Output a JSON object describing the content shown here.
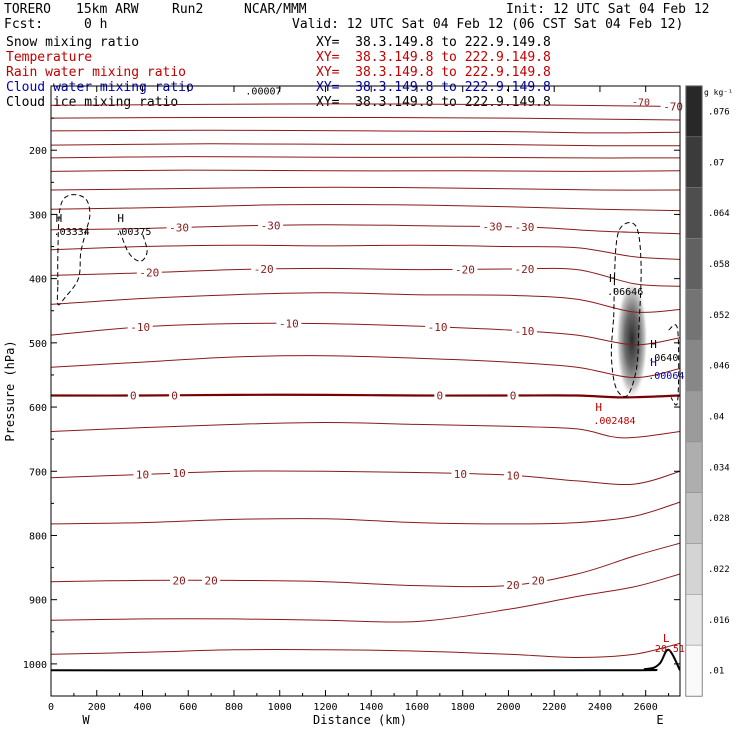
{
  "header": {
    "model": "TORERO",
    "resolution": "15km ARW",
    "run": "Run2",
    "org": "NCAR/MMM",
    "init": "Init: 12 UTC Sat 04 Feb 12",
    "fcst_label": "Fcst:",
    "fcst_value": "0 h",
    "valid": "Valid: 12 UTC Sat 04 Feb 12 (06 CST Sat 04 Feb 12)"
  },
  "fields": [
    {
      "name": "Snow mixing ratio",
      "xy": "XY=  38.3.149.8 to 222.9.149.8",
      "color": "#000000"
    },
    {
      "name": "Temperature",
      "xy": "XY=  38.3.149.8 to 222.9.149.8",
      "color": "#c00000"
    },
    {
      "name": "Rain water mixing ratio",
      "xy": "XY=  38.3.149.8 to 222.9.149.8",
      "color": "#c00000"
    },
    {
      "name": "Cloud water mixing ratio",
      "xy": "XY=  38.3.149.8 to 222.9.149.8",
      "color": "#0000b0"
    },
    {
      "name": "Cloud ice mixing ratio",
      "xy": "XY=  38.3.149.8 to 222.9.149.8",
      "color": "#000000"
    }
  ],
  "colors": {
    "temperature": "#8b1a1a",
    "zero_isotherm": "#7a0000",
    "ground": "#000000",
    "rain_label": "#c00000",
    "cloudwater_label": "#0000b0"
  },
  "chart_data": {
    "type": "contour",
    "xlabel": "Distance (km)",
    "ylabel": "Pressure (hPa)",
    "xlim": [
      0,
      2750
    ],
    "ylim": [
      1050,
      100
    ],
    "x_ticks": [
      0,
      200,
      400,
      600,
      800,
      1000,
      1200,
      1400,
      1600,
      1800,
      2000,
      2200,
      2400,
      2600
    ],
    "y_ticks": [
      200,
      300,
      400,
      500,
      600,
      700,
      800,
      900,
      1000
    ],
    "x_end_labels": {
      "left": "W",
      "right": "E"
    },
    "colorbar": {
      "unit": "g kg⁻¹",
      "ticks": [
        ".01",
        ".016",
        ".022",
        ".028",
        ".034",
        ".04",
        ".046",
        ".052",
        ".058",
        ".064",
        ".07",
        ".076"
      ],
      "values": [
        0.01,
        0.016,
        0.022,
        0.028,
        0.034,
        0.04,
        0.046,
        0.052,
        0.058,
        0.064,
        0.07,
        0.076
      ]
    },
    "temperature_contours": [
      {
        "level": -70,
        "label": "-70",
        "label_x": 2720,
        "points": [
          [
            0,
            130
          ],
          [
            500,
            129
          ],
          [
            1000,
            128
          ],
          [
            1500,
            128
          ],
          [
            2000,
            129
          ],
          [
            2500,
            131
          ],
          [
            2750,
            132
          ]
        ]
      },
      {
        "level": -65,
        "label": "",
        "points": [
          [
            0,
            150
          ],
          [
            700,
            149
          ],
          [
            1400,
            149
          ],
          [
            2000,
            150
          ],
          [
            2500,
            152
          ],
          [
            2750,
            153
          ]
        ]
      },
      {
        "level": -60,
        "label": "",
        "points": [
          [
            0,
            170
          ],
          [
            700,
            169
          ],
          [
            1400,
            170
          ],
          [
            2000,
            171
          ],
          [
            2400,
            173
          ],
          [
            2750,
            172
          ]
        ]
      },
      {
        "level": -55,
        "label": "",
        "points": [
          [
            0,
            192
          ],
          [
            700,
            190
          ],
          [
            1300,
            191
          ],
          [
            1900,
            191
          ],
          [
            2400,
            193
          ],
          [
            2750,
            193
          ]
        ]
      },
      {
        "level": -50,
        "label": "",
        "points": [
          [
            0,
            212
          ],
          [
            600,
            210
          ],
          [
            1200,
            211
          ],
          [
            1800,
            211
          ],
          [
            2300,
            212
          ],
          [
            2750,
            212
          ]
        ]
      },
      {
        "level": -45,
        "label": "",
        "points": [
          [
            0,
            233
          ],
          [
            600,
            231
          ],
          [
            1200,
            232
          ],
          [
            1800,
            232
          ],
          [
            2300,
            233
          ],
          [
            2750,
            232
          ]
        ]
      },
      {
        "level": -40,
        "label": "",
        "points": [
          [
            0,
            262
          ],
          [
            500,
            260
          ],
          [
            1000,
            258
          ],
          [
            1500,
            258
          ],
          [
            2000,
            260
          ],
          [
            2400,
            262
          ],
          [
            2750,
            262
          ]
        ]
      },
      {
        "level": -35,
        "label": "",
        "points": [
          [
            0,
            292
          ],
          [
            500,
            289
          ],
          [
            1000,
            285
          ],
          [
            1500,
            285
          ],
          [
            2000,
            288
          ],
          [
            2400,
            292
          ],
          [
            2750,
            294
          ]
        ]
      },
      {
        "level": -30,
        "label": "-30",
        "label_x": 560,
        "label_x2": 960,
        "label_x3": 1930,
        "label_x4": 2070,
        "points": [
          [
            0,
            324
          ],
          [
            400,
            322
          ],
          [
            800,
            318
          ],
          [
            1200,
            316
          ],
          [
            1700,
            318
          ],
          [
            2100,
            320
          ],
          [
            2400,
            326
          ],
          [
            2750,
            330
          ]
        ]
      },
      {
        "level": -25,
        "label": "",
        "points": [
          [
            0,
            355
          ],
          [
            400,
            350
          ],
          [
            800,
            348
          ],
          [
            1200,
            349
          ],
          [
            1600,
            348
          ],
          [
            2000,
            350
          ],
          [
            2300,
            352
          ],
          [
            2550,
            366
          ],
          [
            2750,
            370
          ]
        ]
      },
      {
        "level": -20,
        "label": "-20",
        "label_x": 430,
        "label_x2": 930,
        "label_x3": 1810,
        "label_x4": 2070,
        "points": [
          [
            0,
            395
          ],
          [
            400,
            391
          ],
          [
            800,
            386
          ],
          [
            1200,
            384
          ],
          [
            1600,
            386
          ],
          [
            2000,
            385
          ],
          [
            2300,
            386
          ],
          [
            2550,
            408
          ],
          [
            2750,
            412
          ]
        ]
      },
      {
        "level": -15,
        "label": "",
        "points": [
          [
            0,
            440
          ],
          [
            400,
            431
          ],
          [
            800,
            425
          ],
          [
            1200,
            422
          ],
          [
            1600,
            425
          ],
          [
            2000,
            426
          ],
          [
            2300,
            432
          ],
          [
            2550,
            452
          ],
          [
            2750,
            448
          ]
        ]
      },
      {
        "level": -10,
        "label": "-10",
        "label_x": 390,
        "label_x2": 1040,
        "label_x3": 1690,
        "label_x4": 2070,
        "points": [
          [
            0,
            488
          ],
          [
            400,
            475
          ],
          [
            800,
            470
          ],
          [
            1200,
            470
          ],
          [
            1600,
            474
          ],
          [
            2000,
            480
          ],
          [
            2300,
            488
          ],
          [
            2550,
            503
          ],
          [
            2750,
            492
          ]
        ]
      },
      {
        "level": -5,
        "label": "",
        "points": [
          [
            0,
            538
          ],
          [
            400,
            530
          ],
          [
            800,
            522
          ],
          [
            1200,
            520
          ],
          [
            1600,
            524
          ],
          [
            2000,
            530
          ],
          [
            2300,
            538
          ],
          [
            2550,
            554
          ],
          [
            2750,
            540
          ]
        ]
      },
      {
        "level": 0,
        "label": "0",
        "label_x": 360,
        "label_x2": 540,
        "label_x3": 1700,
        "label_x4": 2020,
        "bold": true,
        "points": [
          [
            0,
            582
          ],
          [
            400,
            582
          ],
          [
            800,
            581
          ],
          [
            1200,
            581
          ],
          [
            1600,
            582
          ],
          [
            2000,
            582
          ],
          [
            2300,
            582
          ],
          [
            2500,
            585
          ],
          [
            2750,
            582
          ]
        ]
      },
      {
        "level": 5,
        "label": "",
        "points": [
          [
            0,
            638
          ],
          [
            400,
            632
          ],
          [
            800,
            627
          ],
          [
            1200,
            624
          ],
          [
            1600,
            627
          ],
          [
            2000,
            630
          ],
          [
            2300,
            634
          ],
          [
            2500,
            648
          ],
          [
            2750,
            638
          ]
        ]
      },
      {
        "level": 10,
        "label": "10",
        "label_x": 400,
        "label_x2": 560,
        "label_x3": 1790,
        "label_x4": 2020,
        "points": [
          [
            0,
            710
          ],
          [
            400,
            705
          ],
          [
            800,
            700
          ],
          [
            1200,
            700
          ],
          [
            1600,
            702
          ],
          [
            2000,
            706
          ],
          [
            2300,
            715
          ],
          [
            2550,
            720
          ],
          [
            2750,
            700
          ]
        ]
      },
      {
        "level": 15,
        "label": "",
        "points": [
          [
            0,
            782
          ],
          [
            400,
            780
          ],
          [
            800,
            775
          ],
          [
            1200,
            774
          ],
          [
            1600,
            780
          ],
          [
            2000,
            782
          ],
          [
            2300,
            780
          ],
          [
            2550,
            770
          ],
          [
            2750,
            748
          ]
        ]
      },
      {
        "level": 20,
        "label": "20",
        "label_x": 560,
        "label_x2": 700,
        "label_x3": 2020,
        "label_x4": 2130,
        "points": [
          [
            0,
            872
          ],
          [
            400,
            870
          ],
          [
            800,
            870
          ],
          [
            1200,
            872
          ],
          [
            1600,
            878
          ],
          [
            2000,
            878
          ],
          [
            2300,
            860
          ],
          [
            2550,
            832
          ],
          [
            2750,
            812
          ]
        ]
      },
      {
        "level": 25,
        "label": "",
        "points": [
          [
            0,
            932
          ],
          [
            400,
            930
          ],
          [
            800,
            930
          ],
          [
            1200,
            932
          ],
          [
            1600,
            934
          ],
          [
            2000,
            915
          ],
          [
            2300,
            895
          ],
          [
            2550,
            880
          ],
          [
            2750,
            860
          ]
        ]
      },
      {
        "level": 30,
        "label": "",
        "points": [
          [
            0,
            985
          ],
          [
            400,
            982
          ],
          [
            800,
            978
          ],
          [
            1200,
            978
          ],
          [
            1600,
            980
          ],
          [
            2000,
            985
          ],
          [
            2300,
            990
          ],
          [
            2550,
            985
          ],
          [
            2750,
            968
          ]
        ]
      }
    ],
    "ground_surface": {
      "points": [
        [
          0,
          1010
        ],
        [
          2400,
          1010
        ],
        [
          2600,
          1008
        ],
        [
          2660,
          1000
        ],
        [
          2700,
          978
        ],
        [
          2750,
          1010
        ]
      ]
    },
    "cloud_ice_contours": [
      {
        "points": [
          [
            30,
            410
          ],
          [
            30,
            360
          ],
          [
            40,
            290
          ],
          [
            80,
            270
          ],
          [
            150,
            275
          ],
          [
            170,
            300
          ],
          [
            150,
            330
          ],
          [
            130,
            360
          ],
          [
            120,
            400
          ],
          [
            60,
            430
          ],
          [
            30,
            440
          ],
          [
            30,
            410
          ]
        ]
      },
      {
        "points": [
          [
            300,
            325
          ],
          [
            340,
            360
          ],
          [
            390,
            373
          ],
          [
            420,
            358
          ],
          [
            400,
            330
          ]
        ]
      }
    ],
    "cloud_water_contours": [
      {
        "points": [
          [
            2460,
            460
          ],
          [
            2470,
            350
          ],
          [
            2500,
            317
          ],
          [
            2560,
            320
          ],
          [
            2580,
            380
          ],
          [
            2570,
            480
          ],
          [
            2560,
            540
          ],
          [
            2520,
            582
          ],
          [
            2470,
            570
          ],
          [
            2450,
            520
          ],
          [
            2460,
            460
          ]
        ]
      },
      {
        "points": [
          [
            2700,
            480
          ],
          [
            2740,
            480
          ],
          [
            2740,
            590
          ],
          [
            2710,
            585
          ]
        ]
      }
    ],
    "snow_shading": {
      "x_center": 2540,
      "p_top": 400,
      "p_bottom": 590,
      "max_value": 0.07
    },
    "highs": [
      {
        "symbol": "H",
        "value": ".03334",
        "x": 20,
        "p": 312,
        "color": "#000000"
      },
      {
        "symbol": "H",
        "value": ".00375",
        "x": 290,
        "p": 312,
        "color": "#000000"
      },
      {
        "symbol": "H",
        "value": ".06646",
        "x": 2440,
        "p": 405,
        "color": "#000000"
      },
      {
        "symbol": "H",
        "value": ".0640",
        "x": 2620,
        "p": 508,
        "color": "#000000"
      },
      {
        "symbol": "H",
        "value": ".00064",
        "x": 2620,
        "p": 536,
        "color": "#0000b0"
      },
      {
        "symbol": "H",
        "value": ".002484",
        "x": 2380,
        "p": 606,
        "color": "#c00000"
      }
    ],
    "lows": [
      {
        "symbol": "L",
        "value": "20.51",
        "x": 2640,
        "p": 978,
        "color": "#c00000"
      }
    ],
    "extra_labels": [
      {
        "text": ".00007",
        "x": 850,
        "p": 113,
        "color": "#000000"
      },
      {
        "text": "-70",
        "x": 2540,
        "p": 130,
        "color": "#8b1a1a"
      }
    ]
  }
}
